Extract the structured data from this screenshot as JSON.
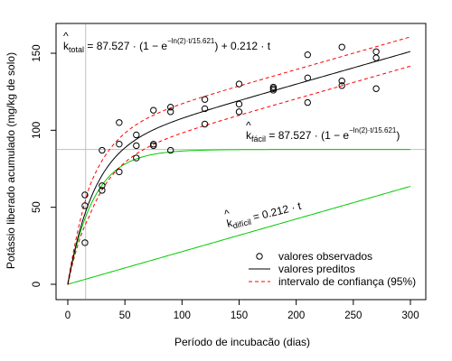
{
  "chart_data": {
    "type": "scatter",
    "title": "",
    "xlabel": "Período de incubacão (dias)",
    "ylabel": "Potássio liberado acumulado (mg/kg de solo)",
    "xlim": [
      0,
      300
    ],
    "ylim": [
      0,
      165
    ],
    "x_ticks": [
      0,
      50,
      100,
      150,
      200,
      250,
      300
    ],
    "y_ticks": [
      0,
      50,
      100,
      150
    ],
    "grid": false,
    "reference_lines": {
      "vertical_x": 15.621,
      "horizontal_y": 87.527
    },
    "model": {
      "a": 87.527,
      "half_life": 15.621,
      "b": 0.212
    },
    "series": [
      {
        "name": "valores observados",
        "kind": "points",
        "points": [
          [
            15,
            27
          ],
          [
            15,
            51
          ],
          [
            15,
            58
          ],
          [
            30,
            61
          ],
          [
            30,
            64
          ],
          [
            30,
            87
          ],
          [
            45,
            73
          ],
          [
            45,
            91
          ],
          [
            45,
            105
          ],
          [
            60,
            82
          ],
          [
            60,
            90
          ],
          [
            60,
            97
          ],
          [
            75,
            90
          ],
          [
            75,
            91
          ],
          [
            75,
            113
          ],
          [
            90,
            87
          ],
          [
            90,
            112
          ],
          [
            90,
            115
          ],
          [
            120,
            104
          ],
          [
            120,
            114
          ],
          [
            120,
            120
          ],
          [
            150,
            112
          ],
          [
            150,
            117
          ],
          [
            150,
            130
          ],
          [
            180,
            126
          ],
          [
            180,
            127
          ],
          [
            180,
            128
          ],
          [
            210,
            118
          ],
          [
            210,
            134
          ],
          [
            210,
            149
          ],
          [
            240,
            129
          ],
          [
            240,
            132
          ],
          [
            240,
            154
          ],
          [
            270,
            127
          ],
          [
            270,
            147
          ],
          [
            270,
            151
          ]
        ]
      },
      {
        "name": "valores preditos",
        "kind": "model_total"
      },
      {
        "name": "intervalo de confiança (95%)",
        "kind": "confidence_band",
        "half_width": 9.5
      }
    ],
    "extra_curves": [
      "k_facil",
      "k_dificil"
    ],
    "colors": {
      "points": "#000000",
      "predicted": "#000000",
      "confidence": "#ff0000",
      "components": "#00cc00",
      "reference": "#bfbfbf"
    },
    "annotations": {
      "total": {
        "name": "k",
        "sub": "total",
        "coef": "87.527",
        "exp": "−ln(2)·t/15.621",
        "tail": "+ 0.212 · t"
      },
      "facil": {
        "name": "k",
        "sub": "fácil",
        "coef": "87.527",
        "exp": "−ln(2)·t/15.621"
      },
      "dificil": {
        "name": "k",
        "sub": "difícil",
        "tail": "0.212 · t"
      }
    },
    "legend_position": "bottom-right"
  }
}
